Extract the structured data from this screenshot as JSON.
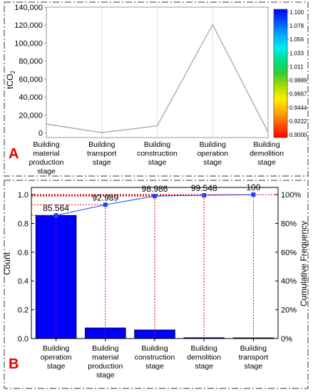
{
  "panel_a": {
    "label": "A",
    "colorbar_ticks": [
      "1.100",
      "1.078",
      "1.056",
      "1.033",
      "1.011",
      "0.9889",
      "0.9667",
      "0.9444",
      "0.9222",
      "0.9000"
    ],
    "colorbar_colors": [
      "#0000ff",
      "#0055ff",
      "#00aaff",
      "#00eeee",
      "#00dd88",
      "#33cc33",
      "#aadd00",
      "#ffee00",
      "#ffaa00",
      "#ff5500",
      "#ff0000"
    ],
    "line_color": "#a6a6a6",
    "chart_data": {
      "type": "line",
      "categories": [
        "Building material production stage",
        "Building transport stage",
        "Building construction stage",
        "Building operation stage",
        "Building demolition stage"
      ],
      "category_lines": [
        [
          "Building",
          "material",
          "production",
          "stage"
        ],
        [
          "Building",
          "transport",
          "stage"
        ],
        [
          "Building",
          "construction",
          "stage"
        ],
        [
          "Building",
          "operation",
          "stage"
        ],
        [
          "Building",
          "demolition",
          "stage"
        ]
      ],
      "values": [
        10000,
        500,
        8000,
        120500,
        1000
      ],
      "ylabel_main": "tCO",
      "ylabel_sub": "2",
      "ylim": [
        -5000,
        140000
      ],
      "yticks": [
        0,
        20000,
        40000,
        60000,
        80000,
        100000,
        120000,
        140000
      ],
      "ytick_labels": [
        "0",
        "20,000",
        "40,000",
        "60,000",
        "80,000",
        "100,000",
        "120,000",
        "140,000"
      ]
    }
  },
  "panel_b": {
    "label": "B",
    "bar_color": "#0000ff",
    "marker_color": "#1f3fff",
    "ref_line_color": "#dd0000",
    "chart_data": {
      "type": "bar",
      "categories": [
        "Building operation stage",
        "Building material production stage",
        "Building construction stage",
        "Building demolition stage",
        "Building transport stage"
      ],
      "category_lines": [
        [
          "Building",
          "operation",
          "stage"
        ],
        [
          "Building",
          "material",
          "production",
          "stage"
        ],
        [
          "Building",
          "construction",
          "stage"
        ],
        [
          "Building",
          "demolition",
          "stage"
        ],
        [
          "Building",
          "transport",
          "stage"
        ]
      ],
      "values": [
        0.856,
        0.074,
        0.06,
        0.006,
        0.005
      ],
      "cumulative": [
        85.564,
        92.989,
        98.986,
        99.548,
        100
      ],
      "cumulative_labels": [
        "85.564",
        "92.989",
        "98.986",
        "99.548",
        "100"
      ],
      "ylabel": "Count",
      "y2label": "Cumulative Frequency",
      "ylim": [
        0,
        1.05
      ],
      "yticks": [
        0,
        0.2,
        0.4,
        0.6,
        0.8,
        1.0
      ],
      "ytick_labels": [
        "0.0",
        "0.2",
        "0.4",
        "0.6",
        "0.8",
        "1.0"
      ],
      "y2ticks": [
        0,
        20,
        40,
        60,
        80,
        100
      ],
      "y2tick_labels": [
        "0%",
        "20%",
        "40%",
        "60%",
        "80%",
        "100%"
      ]
    }
  }
}
